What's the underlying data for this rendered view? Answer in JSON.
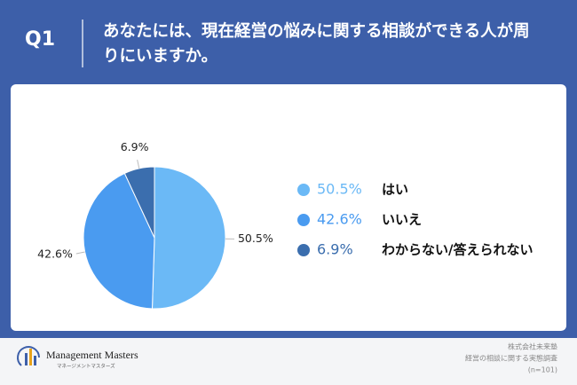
{
  "header": {
    "label": "Q1"
  },
  "chart_data": {
    "type": "pie",
    "title": "あなたには、現在経営の悩みに関する相談ができる人が周りにいますか。",
    "categories": [
      "はい",
      "いいえ",
      "わからない/答えられない"
    ],
    "values": [
      50.5,
      42.6,
      6.9
    ],
    "value_labels": [
      "50.5%",
      "42.6%",
      "6.9%"
    ],
    "colors": [
      "#6bb9f6",
      "#4a9bf0",
      "#3b6eae"
    ]
  },
  "footer": {
    "brand": "Management Masters",
    "brand_kana": "マネージメントマスターズ",
    "company": "株式会社未来塾",
    "survey": "経営の相談に関する実態調査",
    "sample": "(n=101)"
  }
}
